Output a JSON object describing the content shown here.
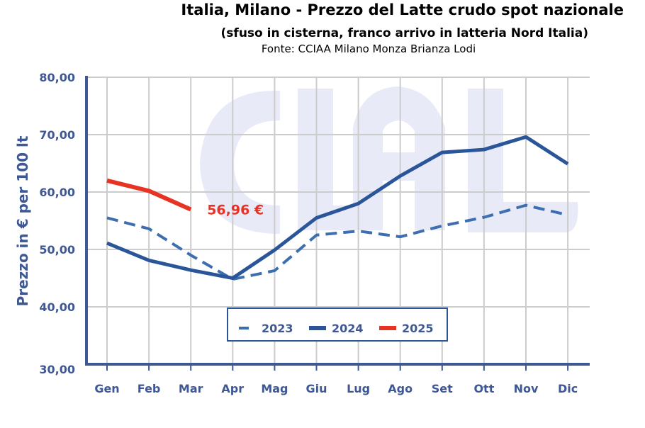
{
  "chart_data": {
    "type": "line",
    "title": "Italia, Milano - Prezzo del Latte crudo spot nazionale",
    "subtitle": "(sfuso in cisterna, franco arrivo in latteria Nord Italia)",
    "source": "Fonte: CCIAA Milano Monza Brianza Lodi",
    "xlabel": "",
    "ylabel": "Prezzo in € per 100 lt",
    "categories": [
      "Gen",
      "Feb",
      "Mar",
      "Apr",
      "Mag",
      "Giu",
      "Lug",
      "Ago",
      "Set",
      "Ott",
      "Nov",
      "Dic"
    ],
    "ylim": [
      30,
      80
    ],
    "yticks": [
      30,
      40,
      50,
      60,
      70,
      80
    ],
    "ytick_labels": [
      "30,00",
      "40,00",
      "50,00",
      "60,00",
      "70,00",
      "80,00"
    ],
    "grid": true,
    "legend_position": "bottom-center",
    "series": [
      {
        "name": "2023",
        "style": "dashed",
        "color": "#3d6eb0",
        "values": [
          55.5,
          53.6,
          49.0,
          44.8,
          46.3,
          52.5,
          53.2,
          52.2,
          54.1,
          55.6,
          57.7,
          56.0
        ]
      },
      {
        "name": "2024",
        "style": "solid",
        "color": "#2a5699",
        "values": [
          51.1,
          48.1,
          46.4,
          45.0,
          49.9,
          55.5,
          58.0,
          62.8,
          66.9,
          67.4,
          69.6,
          64.9
        ]
      },
      {
        "name": "2025",
        "style": "solid-thick",
        "color": "#e63323",
        "values": [
          62.0,
          60.2,
          56.96,
          null,
          null,
          null,
          null,
          null,
          null,
          null,
          null,
          null
        ]
      }
    ],
    "annotations": [
      {
        "text": "56,96 €",
        "series": "2025",
        "category": "Mar",
        "color": "#e63323"
      }
    ],
    "watermark": "CLAL"
  },
  "colors": {
    "axis": "#3e5896",
    "grid": "#cccccc",
    "watermark": "#e8ebf7"
  }
}
